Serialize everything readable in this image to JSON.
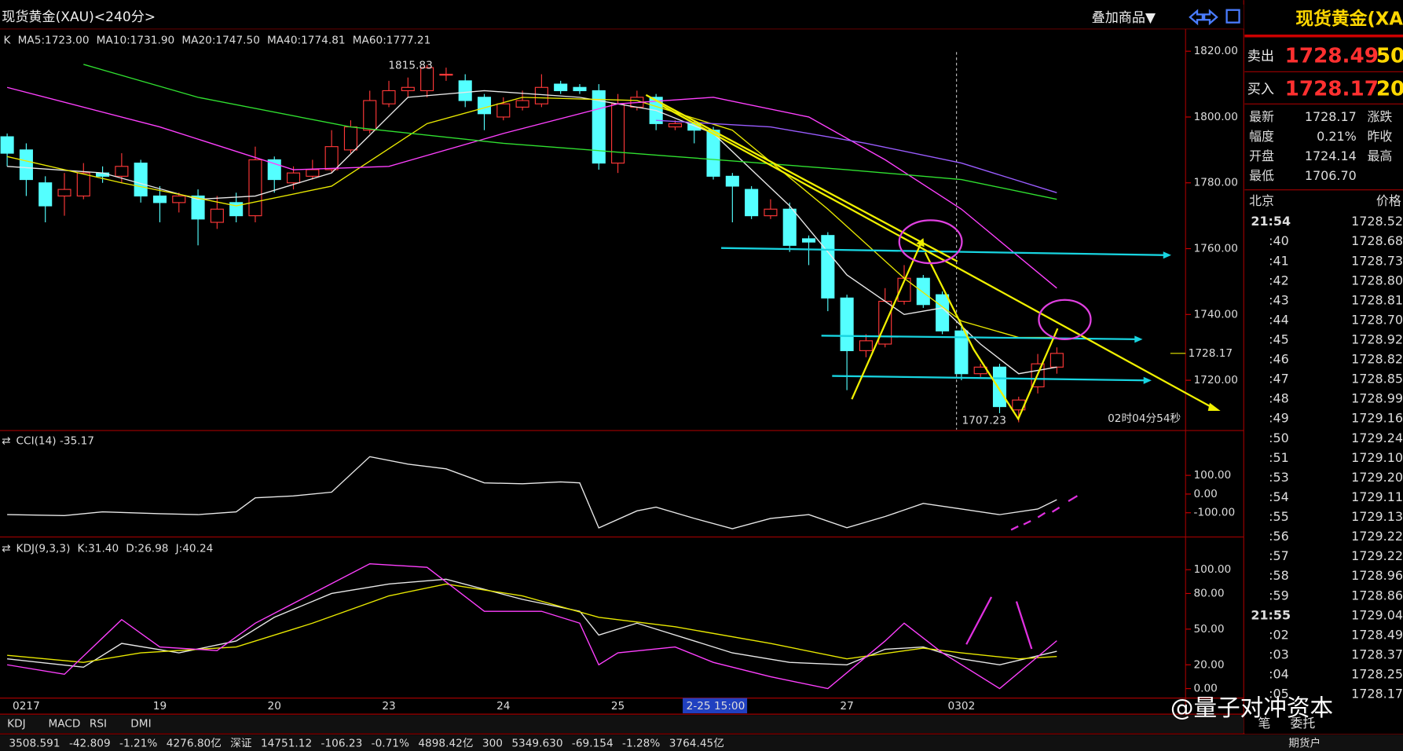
{
  "window": {
    "title": "现货黄金(XAU)<240分>",
    "overlay_menu": "叠加商品▼"
  },
  "chart_data": [
    {
      "type": "candlestick",
      "legend_prefix": "K",
      "up_color": "#ff3838",
      "down_color": "#54ffff",
      "categories": [
        null,
        "0217",
        null,
        null,
        null,
        null,
        null,
        null,
        "19",
        null,
        null,
        null,
        null,
        null,
        "20",
        null,
        null,
        null,
        null,
        null,
        "23",
        null,
        null,
        null,
        null,
        null,
        "24",
        null,
        null,
        null,
        null,
        null,
        "25",
        null,
        null,
        null,
        null,
        null,
        null,
        null,
        null,
        null,
        null,
        null,
        "27",
        null,
        null,
        null,
        null,
        null,
        "0302",
        null,
        null,
        null,
        null,
        null
      ],
      "open": [
        1794,
        1790,
        1780,
        1776,
        1776,
        1783,
        1782,
        1786,
        1776,
        1774,
        1776,
        1768,
        1774,
        1770,
        1787,
        1780,
        1782,
        1784,
        1790,
        1796,
        1804,
        1808,
        1808,
        1813,
        1811,
        1806,
        1800,
        1803,
        1804,
        1810,
        1809,
        1808,
        1786,
        1803,
        1806,
        1797,
        1798,
        1796,
        1782,
        1778,
        1770,
        1772,
        1763,
        1764,
        1745,
        1729,
        1731,
        1744,
        1751,
        1746,
        1735,
        1722,
        1724,
        1711,
        1718,
        1724
      ],
      "high": [
        1795,
        1792,
        1782,
        1783,
        1786,
        1785,
        1789,
        1787,
        1779,
        1777,
        1778,
        1776,
        1777,
        1791,
        1788,
        1785,
        1787,
        1796,
        1799,
        1808,
        1811,
        1812,
        1815.83,
        1815,
        1813,
        1807,
        1806,
        1808,
        1813,
        1811,
        1810,
        1810,
        1807,
        1808,
        1807,
        1799,
        1799,
        1797,
        1783,
        1779,
        1775,
        1774,
        1764,
        1765,
        1746,
        1734,
        1748,
        1755,
        1752,
        1747,
        1737,
        1725,
        1725,
        1715,
        1728,
        1730
      ],
      "low": [
        1785,
        1776,
        1768,
        1770,
        1775,
        1780,
        1780,
        1774,
        1768,
        1771,
        1761,
        1766,
        1768,
        1768,
        1777,
        1778,
        1781,
        1783,
        1789,
        1795,
        1803,
        1806,
        1806,
        1811,
        1803,
        1796,
        1799,
        1802,
        1803,
        1807,
        1807,
        1784,
        1783,
        1802,
        1796,
        1796,
        1792,
        1781,
        1768,
        1769,
        1769,
        1759,
        1755,
        1741,
        1717,
        1727,
        1730,
        1743,
        1742,
        1734,
        1720,
        1721,
        1710,
        1707.23,
        1716,
        1722
      ],
      "close": [
        1789,
        1781,
        1773,
        1778,
        1783,
        1782,
        1785,
        1776,
        1774,
        1776,
        1769,
        1772,
        1770,
        1787,
        1781,
        1783,
        1784,
        1791,
        1797,
        1805,
        1808,
        1809,
        1815,
        1813,
        1805,
        1801,
        1804,
        1805,
        1809,
        1808,
        1808,
        1786,
        1804,
        1806,
        1798,
        1798,
        1796,
        1782,
        1779,
        1770,
        1772,
        1761,
        1762,
        1745,
        1729,
        1732,
        1744,
        1751,
        1743,
        1735,
        1722,
        1724,
        1712,
        1714,
        1725,
        1728.17
      ],
      "series": [
        {
          "name": "MA5:1723.00",
          "color": "#e8e8e8",
          "x": [
            0,
            5,
            10,
            13,
            17,
            21,
            25,
            30,
            34,
            37,
            41,
            44,
            47,
            49,
            51,
            53,
            55
          ],
          "values": [
            1785,
            1783,
            1775,
            1776,
            1783,
            1806,
            1808,
            1806,
            1802,
            1795,
            1773,
            1752,
            1740,
            1742,
            1731,
            1722,
            1724
          ]
        },
        {
          "name": "MA10:1731.90",
          "color": "#e8e800",
          "x": [
            0,
            6,
            12,
            17,
            22,
            27,
            33,
            38,
            43,
            47,
            50,
            53,
            55
          ],
          "values": [
            1788,
            1780,
            1773,
            1779,
            1798,
            1806,
            1805,
            1796,
            1772,
            1751,
            1738,
            1733,
            1733
          ]
        },
        {
          "name": "MA20:1747.50",
          "color": "#ff40ff",
          "x": [
            0,
            8,
            15,
            20,
            26,
            32,
            37,
            42,
            46,
            50,
            55
          ],
          "values": [
            1809,
            1797,
            1784,
            1785,
            1795,
            1804,
            1806,
            1800,
            1787,
            1772,
            1748
          ]
        },
        {
          "name": "MA40:1774.81",
          "color": "#30e030",
          "x": [
            4,
            10,
            18,
            26,
            35,
            44,
            50,
            55
          ],
          "values": [
            1816,
            1806,
            1797,
            1792,
            1788,
            1784,
            1781,
            1775
          ]
        },
        {
          "name": "MA60:1777.21",
          "color": "#9a5cff",
          "x": [
            34,
            40,
            45,
            50,
            55
          ],
          "values": [
            1799,
            1797,
            1792,
            1786,
            1777
          ]
        }
      ],
      "ylim": [
        1705,
        1826
      ],
      "yticks": [
        {
          "value": 1820,
          "label": "1820.00"
        },
        {
          "value": 1800,
          "label": "1800.00"
        },
        {
          "value": 1780,
          "label": "1780.00"
        },
        {
          "value": 1760,
          "label": "1760.00"
        },
        {
          "value": 1740,
          "label": "1740.00"
        },
        {
          "value": 1720,
          "label": "1720.00"
        }
      ],
      "last_price": {
        "value": 1728.17,
        "label": "1728.17"
      },
      "annotations": [
        "1815.83",
        "1707.23",
        "02时04分54秒"
      ],
      "cursor_label": "2-25 15:00"
    },
    {
      "type": "line",
      "series": [
        {
          "name": "CCI(14) -35.17",
          "color": "#e8e8e8",
          "x": [
            0,
            3,
            5,
            8,
            10,
            12,
            13,
            15,
            17,
            19,
            21,
            23,
            25,
            27,
            29,
            30,
            31,
            33,
            34,
            36,
            38,
            40,
            42,
            44,
            46,
            48,
            50,
            52,
            54,
            55
          ],
          "values": [
            -110,
            -115,
            -95,
            -105,
            -110,
            -95,
            -20,
            -10,
            10,
            200,
            160,
            135,
            60,
            55,
            65,
            60,
            -181,
            -90,
            -70,
            -130,
            -185,
            -130,
            -110,
            -180,
            -120,
            -50,
            -80,
            -110,
            -80,
            -30
          ]
        }
      ],
      "ylim": [
        -220,
        330
      ],
      "yticks": [
        {
          "value": 100,
          "label": "100.00"
        },
        {
          "value": 0,
          "label": "0.00"
        },
        {
          "value": -100,
          "label": "-100.00"
        }
      ]
    },
    {
      "type": "line",
      "title": "KDJ(9,3,3)",
      "series": [
        {
          "name": "K:31.40",
          "color": "#e8e8e8",
          "x": [
            0,
            4,
            6,
            9,
            12,
            14,
            17,
            20,
            23,
            27,
            30,
            31,
            33,
            36,
            38,
            41,
            44,
            46,
            48,
            50,
            52,
            55
          ],
          "values": [
            25,
            18,
            38,
            30,
            40,
            60,
            80,
            88,
            92,
            75,
            65,
            45,
            55,
            40,
            30,
            22,
            20,
            33,
            35,
            25,
            20,
            31.4
          ]
        },
        {
          "name": "D:26.98",
          "color": "#e8e800",
          "x": [
            0,
            4,
            7,
            12,
            16,
            20,
            23,
            27,
            31,
            35,
            40,
            44,
            48,
            50,
            53,
            55
          ],
          "values": [
            28,
            22,
            30,
            35,
            55,
            78,
            88,
            78,
            60,
            52,
            38,
            25,
            34,
            30,
            25,
            26.98
          ]
        },
        {
          "name": "J:40.24",
          "color": "#ff40ff",
          "x": [
            0,
            3,
            6,
            8,
            11,
            13,
            16,
            19,
            22,
            25,
            28,
            30,
            31,
            32,
            35,
            37,
            40,
            43,
            46,
            47,
            49,
            52,
            55
          ],
          "values": [
            20,
            12,
            58,
            35,
            32,
            55,
            80,
            105,
            102,
            65,
            65,
            55,
            20,
            30,
            35,
            22,
            10,
            0,
            40,
            55,
            30,
            0,
            40.24
          ]
        }
      ],
      "ylim": [
        -8,
        126
      ],
      "yticks": [
        {
          "value": 100,
          "label": "100.00"
        },
        {
          "value": 80,
          "label": "80.00"
        },
        {
          "value": 50,
          "label": "50.00"
        },
        {
          "value": 20,
          "label": "20.00"
        },
        {
          "value": 0,
          "label": "0.00"
        }
      ]
    }
  ],
  "quote_panel": {
    "title": "现货黄金(XA",
    "sell": {
      "label": "卖出",
      "price": "1728.49",
      "qty": "50"
    },
    "buy": {
      "label": "买入",
      "price": "1728.17",
      "qty": "20"
    },
    "stats": [
      [
        "最新",
        "1728.17",
        "涨跌"
      ],
      [
        "幅度",
        "0.21%",
        "昨收"
      ],
      [
        "开盘",
        "1724.14",
        "最高"
      ],
      [
        "最低",
        "1706.70",
        ""
      ]
    ],
    "header": [
      "北京",
      "价格"
    ],
    "ticks": [
      [
        "21:54",
        "1728.52"
      ],
      [
        ":40",
        "1728.68"
      ],
      [
        ":41",
        "1728.73"
      ],
      [
        ":42",
        "1728.80"
      ],
      [
        ":43",
        "1728.81"
      ],
      [
        ":44",
        "1728.70"
      ],
      [
        ":45",
        "1728.92"
      ],
      [
        ":46",
        "1728.82"
      ],
      [
        ":47",
        "1728.85"
      ],
      [
        ":48",
        "1728.99"
      ],
      [
        ":49",
        "1729.16"
      ],
      [
        ":50",
        "1729.24"
      ],
      [
        ":51",
        "1729.10"
      ],
      [
        ":53",
        "1729.20"
      ],
      [
        ":54",
        "1729.11"
      ],
      [
        ":55",
        "1729.13"
      ],
      [
        ":56",
        "1729.22"
      ],
      [
        ":57",
        "1729.22"
      ],
      [
        ":58",
        "1728.96"
      ],
      [
        ":59",
        "1728.86"
      ],
      [
        "21:55",
        "1729.04"
      ],
      [
        ":02",
        "1728.49"
      ],
      [
        ":03",
        "1728.37"
      ],
      [
        ":04",
        "1728.25"
      ],
      [
        ":05",
        "1728.17"
      ]
    ],
    "tabs": [
      "笔",
      "委托"
    ]
  },
  "indicator_tabs": [
    "KDJ",
    "MACD",
    "RSI",
    "DMI"
  ],
  "status_bar": [
    "3508.591",
    "-42.809",
    "-1.21%",
    "4276.80亿",
    "深证",
    "14751.12",
    "-106.23",
    "-0.71%",
    "4898.42亿",
    "300",
    "5349.630",
    "-69.154",
    "-1.28%",
    "3764.45亿",
    "期货户"
  ],
  "watermark": "@量子对冲资本"
}
